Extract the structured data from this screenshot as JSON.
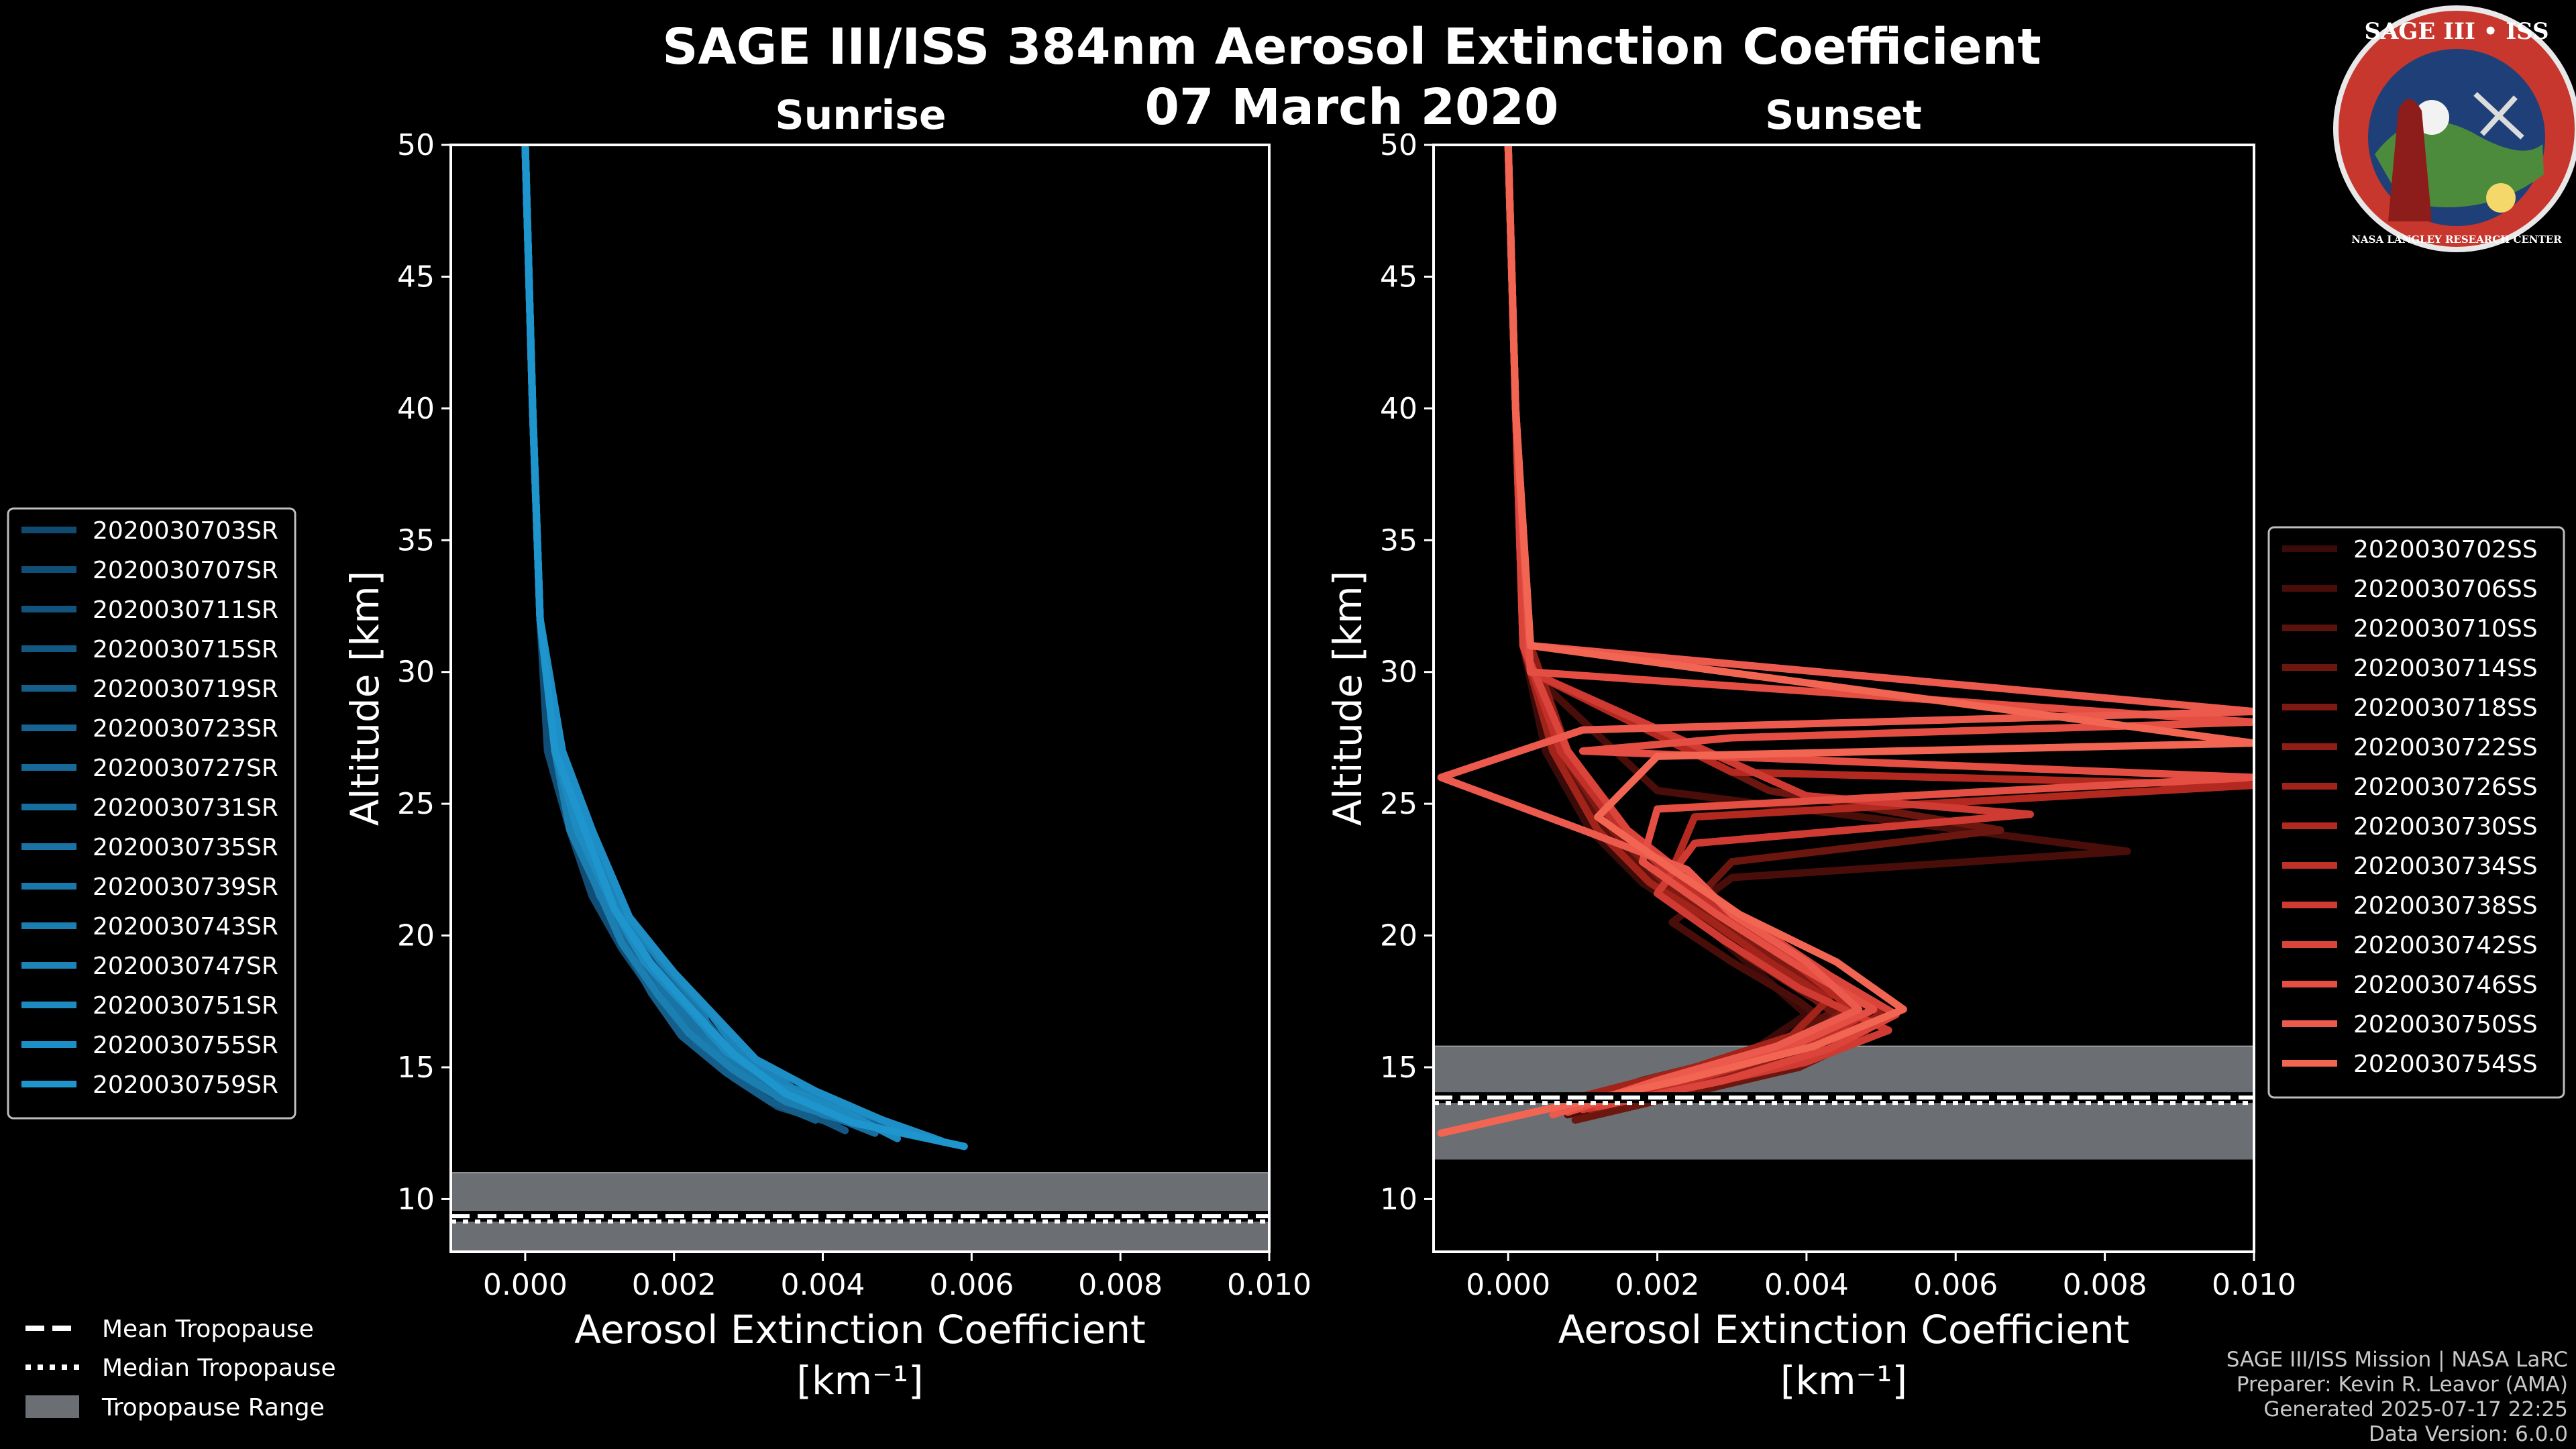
{
  "title_line1": "SAGE III/ISS 384nm Aerosol Extinction Coefficient",
  "title_line2": "07 March 2020",
  "logo": {
    "text": "SAGE III • ISS",
    "ring_text": "NASA LANGLEY RESEARCH CENTER"
  },
  "footer": {
    "line1": "SAGE III/ISS Mission | NASA LaRC",
    "line2": "Preparer: Kevin R. Leavor (AMA)",
    "line3": "Generated 2025-07-17 22:25",
    "line4": "Data Version: 6.0.0"
  },
  "tropopause_legend": {
    "mean": "Mean Tropopause",
    "median": "Median Tropopause",
    "range": "Tropopause Range"
  },
  "colors": {
    "sunrise": "#1a90d0",
    "sunset": "#f06050",
    "tropo_fill": "#6b6e72"
  },
  "chart_data": [
    {
      "type": "line",
      "title": "Sunrise",
      "xlabel": "Aerosol Extinction Coefficient",
      "xunit": "[km⁻¹]",
      "ylabel": "Altitude [km]",
      "xlim": [
        -0.001,
        0.01
      ],
      "ylim": [
        8,
        50
      ],
      "xticks": [
        "0.000",
        "0.002",
        "0.004",
        "0.006",
        "0.008",
        "0.010"
      ],
      "xtick_values": [
        0,
        0.002,
        0.004,
        0.006,
        0.008,
        0.01
      ],
      "yticks": [
        10,
        15,
        20,
        25,
        30,
        35,
        40,
        45,
        50
      ],
      "tropopause": {
        "mean": 9.35,
        "median": 9.25,
        "range": [
          8.0,
          11.0
        ]
      },
      "legend_position": "outside-left",
      "series": [
        {
          "name": "2020030703SR",
          "color": "#0f4a70",
          "x": [
            0.0,
            0.0001,
            0.0002,
            0.0004,
            0.0007,
            0.001,
            0.0014,
            0.0019,
            0.0024,
            0.0031,
            0.0038,
            0.0045
          ],
          "y": [
            50,
            40,
            32,
            27,
            24,
            21.5,
            19.5,
            17.5,
            16,
            14.5,
            13.3,
            12.8
          ]
        },
        {
          "name": "2020030707SR",
          "color": "#104e76",
          "x": [
            0.0,
            0.0001,
            0.0002,
            0.0003,
            0.0006,
            0.0009,
            0.0013,
            0.0018,
            0.0022,
            0.0028,
            0.0034,
            0.0041
          ],
          "y": [
            50,
            40,
            32,
            27,
            24,
            21.5,
            19.5,
            17.5,
            16,
            14.6,
            13.5,
            12.9
          ]
        },
        {
          "name": "2020030711SR",
          "color": "#12537d",
          "x": [
            0.0,
            0.0001,
            0.0002,
            0.0004,
            0.0008,
            0.0011,
            0.0016,
            0.002,
            0.0025,
            0.0032,
            0.004,
            0.0048
          ],
          "y": [
            50,
            40,
            32,
            27,
            24,
            21.4,
            19.2,
            17.4,
            16,
            14.6,
            13.6,
            12.7
          ]
        },
        {
          "name": "2020030715SR",
          "color": "#135883",
          "x": [
            0.0,
            0.0001,
            0.0002,
            0.0004,
            0.0007,
            0.0012,
            0.0015,
            0.0021,
            0.0026,
            0.003,
            0.0037,
            0.0043
          ],
          "y": [
            50,
            40,
            32,
            27,
            24,
            21.2,
            19.6,
            17.6,
            16.2,
            14.8,
            13.4,
            12.6
          ]
        },
        {
          "name": "2020030719SR",
          "color": "#155e8a",
          "x": [
            0.0,
            0.0001,
            0.0002,
            0.0004,
            0.0006,
            0.001,
            0.0013,
            0.0017,
            0.0021,
            0.0027,
            0.0033,
            0.0039
          ],
          "y": [
            50,
            40,
            32,
            27,
            24,
            21.6,
            19.8,
            17.8,
            16.2,
            14.8,
            13.7,
            13.0
          ]
        },
        {
          "name": "2020030723SR",
          "color": "#166391",
          "x": [
            0.0,
            0.0001,
            0.0002,
            0.0005,
            0.0008,
            0.0012,
            0.0017,
            0.0023,
            0.0027,
            0.0034,
            0.0042,
            0.005
          ],
          "y": [
            50,
            40,
            32,
            27,
            24,
            21.2,
            19.4,
            17.2,
            15.8,
            14.4,
            13.4,
            12.7
          ]
        },
        {
          "name": "2020030727SR",
          "color": "#176997",
          "x": [
            0.0,
            0.0001,
            0.0002,
            0.0004,
            0.0007,
            0.0011,
            0.0014,
            0.0019,
            0.0023,
            0.0029,
            0.0036,
            0.0044
          ],
          "y": [
            50,
            40,
            32,
            27,
            24,
            21.4,
            19.6,
            17.6,
            16.0,
            14.7,
            13.6,
            12.9
          ]
        },
        {
          "name": "2020030731SR",
          "color": "#186e9e",
          "x": [
            0.0,
            0.0001,
            0.0002,
            0.0004,
            0.0008,
            0.0012,
            0.0016,
            0.0021,
            0.0026,
            0.0032,
            0.0039,
            0.0047
          ],
          "y": [
            50,
            40,
            32,
            27,
            24,
            21.3,
            19.3,
            17.3,
            15.9,
            14.5,
            13.4,
            12.5
          ]
        },
        {
          "name": "2020030735SR",
          "color": "#1974a5",
          "x": [
            0.0,
            0.0001,
            0.0002,
            0.0004,
            0.0007,
            0.001,
            0.0015,
            0.002,
            0.0024,
            0.003,
            0.0037,
            0.0045
          ],
          "y": [
            50,
            40,
            32,
            27,
            24,
            21.5,
            19.5,
            17.4,
            16.1,
            14.7,
            13.5,
            12.8
          ]
        },
        {
          "name": "2020030739SR",
          "color": "#1a79ab",
          "x": [
            0.0,
            0.0001,
            0.0002,
            0.0005,
            0.0009,
            0.0013,
            0.0018,
            0.0024,
            0.0025,
            0.0033,
            0.004,
            0.0049
          ],
          "y": [
            50,
            40,
            32,
            27,
            24,
            21.1,
            19.1,
            17.1,
            15.7,
            14.3,
            13.2,
            12.6
          ]
        },
        {
          "name": "2020030743SR",
          "color": "#1b7fb2",
          "x": [
            0.0,
            0.0001,
            0.0002,
            0.0004,
            0.0006,
            0.001,
            0.0013,
            0.0018,
            0.0022,
            0.0028,
            0.0035,
            0.0042
          ],
          "y": [
            50,
            40,
            32,
            27,
            24,
            21.6,
            19.7,
            17.7,
            16.3,
            14.9,
            13.7,
            13.1
          ]
        },
        {
          "name": "2020030747SR",
          "color": "#1c84b9",
          "x": [
            0.0,
            0.0001,
            0.0002,
            0.0004,
            0.0008,
            0.0013,
            0.0019,
            0.0025,
            0.0029,
            0.0036,
            0.0047,
            0.0053
          ],
          "y": [
            50,
            40,
            32,
            27,
            24,
            20.8,
            18.8,
            17.0,
            15.5,
            14.2,
            13.1,
            12.4
          ]
        },
        {
          "name": "2020030751SR",
          "color": "#1d8ac0",
          "x": [
            0.0,
            0.0001,
            0.0002,
            0.0004,
            0.0007,
            0.0012,
            0.0016,
            0.0022,
            0.0027,
            0.0034,
            0.0043,
            0.005
          ],
          "y": [
            50,
            40,
            32,
            27,
            24,
            21.0,
            19.0,
            17.2,
            15.6,
            14.3,
            13.3,
            12.3
          ]
        },
        {
          "name": "2020030755SR",
          "color": "#1e8fc6",
          "x": [
            0.0,
            0.0001,
            0.0002,
            0.0005,
            0.0009,
            0.0014,
            0.002,
            0.0026,
            0.0031,
            0.0039,
            0.0048,
            0.0056
          ],
          "y": [
            50,
            40,
            32,
            27,
            24,
            20.7,
            18.6,
            16.8,
            15.3,
            14.1,
            13.0,
            12.2
          ]
        },
        {
          "name": "2020030759SR",
          "color": "#1f95cd",
          "x": [
            0.0,
            0.0001,
            0.0002,
            0.0004,
            0.0008,
            0.0012,
            0.0017,
            0.0023,
            0.0028,
            0.0035,
            0.0044,
            0.0059
          ],
          "y": [
            50,
            40,
            32,
            27,
            24,
            21.0,
            18.9,
            17.0,
            15.5,
            14.0,
            12.9,
            12.0
          ]
        }
      ]
    },
    {
      "type": "line",
      "title": "Sunset",
      "xlabel": "Aerosol Extinction Coefficient",
      "xunit": "[km⁻¹]",
      "ylabel": "Altitude [km]",
      "xlim": [
        -0.001,
        0.01
      ],
      "ylim": [
        8,
        50
      ],
      "xticks": [
        "0.000",
        "0.002",
        "0.004",
        "0.006",
        "0.008",
        "0.010"
      ],
      "xtick_values": [
        0,
        0.002,
        0.004,
        0.006,
        0.008,
        0.01
      ],
      "yticks": [
        10,
        15,
        20,
        25,
        30,
        35,
        40,
        45,
        50
      ],
      "tropopause": {
        "mean": 13.85,
        "median": 13.75,
        "range": [
          11.5,
          15.8
        ]
      },
      "legend_position": "outside-right",
      "series": [
        {
          "name": "2020030702SS",
          "color": "#3a0b08",
          "x": [
            0.0,
            0.0001,
            0.0002,
            0.0005,
            0.0011,
            0.0018,
            0.0026,
            0.0034,
            0.004,
            0.0032,
            0.0018,
            0.0007
          ],
          "y": [
            50,
            40,
            31,
            27,
            24,
            22,
            20.5,
            18.5,
            17,
            15.5,
            14.5,
            13.5
          ]
        },
        {
          "name": "2020030706SS",
          "color": "#4a0e0a",
          "x": [
            0.0,
            0.0001,
            0.0003,
            0.002,
            0.0083,
            0.003,
            0.0022,
            0.003,
            0.0039,
            0.0045,
            0.0036,
            0.002,
            0.0008
          ],
          "y": [
            50,
            40,
            30,
            25.5,
            23.2,
            22.2,
            20.5,
            19,
            17.5,
            16.2,
            15,
            14,
            13.2
          ]
        },
        {
          "name": "2020030710SS",
          "color": "#5a120d",
          "x": [
            0.0,
            0.0001,
            0.0002,
            0.0006,
            0.0013,
            0.002,
            0.0028,
            0.0037,
            0.0044,
            0.0036,
            0.0022,
            0.001
          ],
          "y": [
            50,
            40,
            31,
            27,
            24,
            22,
            20.5,
            18.6,
            17.2,
            15.8,
            14.6,
            13.6
          ]
        },
        {
          "name": "2020030714SS",
          "color": "#6c1610",
          "x": [
            0.0,
            0.0001,
            0.0003,
            0.0035,
            0.0066,
            0.003,
            0.0024,
            0.0032,
            0.0041,
            0.0048,
            0.0039,
            0.0024,
            0.0009
          ],
          "y": [
            50,
            40,
            30,
            25.5,
            24.0,
            22.8,
            21,
            19.2,
            17.6,
            16.2,
            15,
            14,
            13.0
          ]
        },
        {
          "name": "2020030718SS",
          "color": "#7e1a13",
          "x": [
            0.0,
            0.0001,
            0.0002,
            0.0007,
            0.0014,
            0.0021,
            0.0029,
            0.0038,
            0.0046,
            0.004,
            0.0026,
            0.0012
          ],
          "y": [
            50,
            40,
            31,
            27,
            24,
            22,
            20.4,
            18.8,
            17.4,
            16,
            14.8,
            13.8
          ]
        },
        {
          "name": "2020030722SS",
          "color": "#901e16",
          "x": [
            0.0,
            0.0001,
            0.0003,
            0.0008,
            0.0016,
            0.0024,
            0.0033,
            0.0042,
            0.005,
            0.0042,
            0.0028,
            0.0011
          ],
          "y": [
            50,
            40,
            31,
            27,
            24,
            22,
            20.3,
            18.6,
            17.0,
            15.8,
            14.6,
            13.4
          ]
        },
        {
          "name": "2020030726SS",
          "color": "#a2231a",
          "x": [
            0.0,
            0.0001,
            0.0002,
            0.0006,
            0.0012,
            0.0019,
            0.0027,
            0.0035,
            0.0043,
            0.0038,
            0.0025,
            0.001
          ],
          "y": [
            50,
            40,
            31,
            27,
            24,
            22,
            20.6,
            19.0,
            17.6,
            16.2,
            15,
            13.9
          ]
        },
        {
          "name": "2020030730SS",
          "color": "#b3291f",
          "x": [
            0.0,
            0.0001,
            0.0003,
            0.003,
            0.01,
            0.0025,
            0.0022,
            0.0031,
            0.004,
            0.0047,
            0.0037,
            0.0021,
            0.0008
          ],
          "y": [
            50,
            40,
            30,
            26.2,
            25.7,
            24.5,
            22.5,
            20.5,
            18.6,
            17.0,
            15.6,
            14.4,
            13.3
          ]
        },
        {
          "name": "2020030734SS",
          "color": "#c2302a",
          "x": [
            0.0,
            0.0001,
            0.0002,
            0.0007,
            0.0015,
            0.0023,
            0.0032,
            0.0041,
            0.0049,
            0.0041,
            0.0027,
            0.0013
          ],
          "y": [
            50,
            40,
            31,
            27,
            24,
            22,
            20.3,
            18.7,
            17.2,
            15.9,
            14.7,
            13.7
          ]
        },
        {
          "name": "2020030738SS",
          "color": "#cf3a32",
          "x": [
            0.0,
            0.0001,
            0.0003,
            0.004,
            0.007,
            0.0025,
            0.002,
            0.0029,
            0.0039,
            0.0051,
            0.004,
            0.0024,
            0.001
          ],
          "y": [
            50,
            40,
            30,
            25.3,
            24.6,
            23.5,
            21.6,
            19.8,
            18.0,
            16.4,
            15.2,
            14.2,
            13.4
          ]
        },
        {
          "name": "2020030742SS",
          "color": "#db443a",
          "x": [
            0.0,
            0.0001,
            0.0002,
            0.0008,
            0.0016,
            0.0025,
            0.0034,
            0.0043,
            0.0052,
            0.0043,
            0.0029,
            0.0012
          ],
          "y": [
            50,
            40,
            31,
            27,
            24,
            22,
            20.2,
            18.5,
            17.0,
            15.7,
            14.5,
            13.5
          ]
        },
        {
          "name": "2020030746SS",
          "color": "#e54e43",
          "x": [
            0.0,
            0.0001,
            0.0003,
            0.01,
            0.003,
            0.001,
            0.01,
            0.002,
            0.0018,
            0.0028,
            0.0038,
            0.0049,
            0.0038,
            0.0022,
            0.0008
          ],
          "y": [
            50,
            40,
            30,
            28.1,
            27.5,
            27.0,
            26.0,
            24.8,
            22.8,
            20.8,
            19.0,
            17.2,
            15.8,
            14.6,
            13.3
          ]
        },
        {
          "name": "2020030750SS",
          "color": "#ec594d",
          "x": [
            0.0,
            0.0001,
            0.0003,
            0.01,
            0.001,
            -0.0009,
            0.001,
            0.0024,
            0.003,
            0.004,
            0.0047,
            0.0036,
            0.002,
            0.0006
          ],
          "y": [
            50,
            40,
            31,
            28.5,
            27.8,
            26.0,
            24.0,
            22.5,
            20.8,
            19.0,
            17.2,
            15.8,
            14.5,
            13.2
          ]
        },
        {
          "name": "2020030754SS",
          "color": "#f26552",
          "x": [
            0.0,
            0.0001,
            0.0003,
            0.01,
            0.002,
            0.0012,
            0.0022,
            0.0031,
            0.0044,
            0.0053,
            0.0041,
            0.0023,
            0.0005,
            -0.0009
          ],
          "y": [
            50,
            40,
            31,
            27.3,
            26.8,
            24.5,
            22.5,
            20.8,
            19.0,
            17.2,
            15.8,
            14.5,
            13.4,
            12.5
          ]
        }
      ]
    }
  ]
}
